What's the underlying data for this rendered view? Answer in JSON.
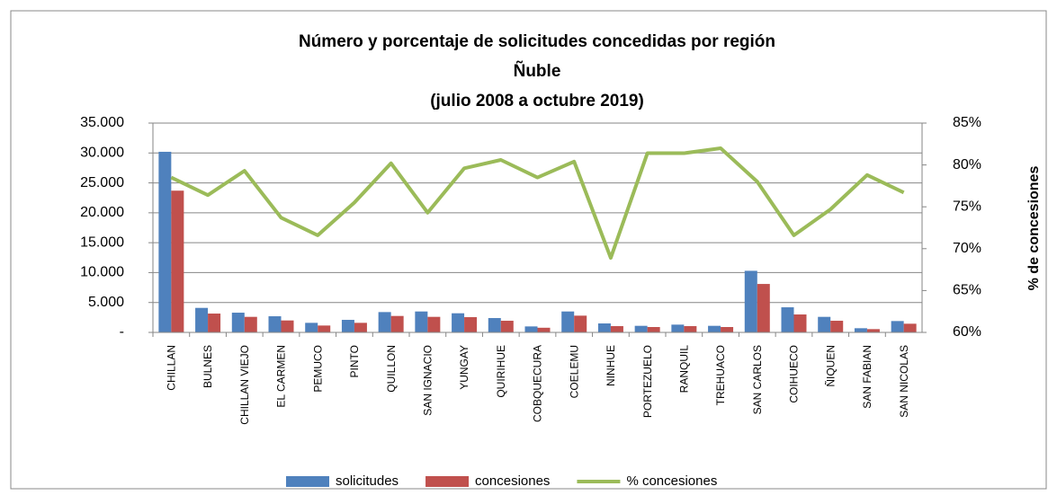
{
  "chart_data": {
    "type": "bar-line",
    "title": "Número y porcentaje de solicitudes concedidas por región",
    "subtitle": "Ñuble",
    "subtitle2": "(julio 2008 a octubre 2019)",
    "y2label": "% de concesiones",
    "categories": [
      "CHILLAN",
      "BULNES",
      "CHILLAN VIEJO",
      "EL CARMEN",
      "PEMUCO",
      "PINTO",
      "QUILLON",
      "SAN IGNACIO",
      "YUNGAY",
      "QUIRIHUE",
      "COBQUECURA",
      "COELEMU",
      "NINHUE",
      "PORTEZUELO",
      "RANQUIL",
      "TREHUACO",
      "SAN CARLOS",
      "COIHUECO",
      "ÑIQUEN",
      "SAN FABIAN",
      "SAN NICOLAS"
    ],
    "series": [
      {
        "name": "solicitudes",
        "color": "#4f81bd",
        "values": [
          30200,
          4100,
          3300,
          2700,
          1600,
          2100,
          3400,
          3500,
          3200,
          2400,
          1000,
          3500,
          1500,
          1100,
          1300,
          1100,
          10300,
          4200,
          2600,
          700,
          1900
        ]
      },
      {
        "name": "concesiones",
        "color": "#c0504d",
        "values": [
          23700,
          3150,
          2600,
          2000,
          1150,
          1600,
          2750,
          2600,
          2550,
          1950,
          780,
          2800,
          1050,
          900,
          1050,
          900,
          8100,
          3000,
          1950,
          550,
          1450
        ]
      },
      {
        "name": "% concesiones",
        "color": "#9bbb59",
        "axis": "y2",
        "values": [
          78.5,
          76.4,
          79.3,
          73.7,
          71.6,
          75.5,
          80.2,
          74.3,
          79.6,
          80.6,
          78.5,
          80.4,
          68.9,
          81.4,
          81.4,
          82.0,
          78.0,
          71.6,
          74.7,
          78.8,
          76.7
        ]
      }
    ],
    "ylim": [
      0,
      35000
    ],
    "yticks": [
      {
        "value": 0,
        "label": "-"
      },
      {
        "value": 5000,
        "label": "5.000"
      },
      {
        "value": 10000,
        "label": "10.000"
      },
      {
        "value": 15000,
        "label": "15.000"
      },
      {
        "value": 20000,
        "label": "20.000"
      },
      {
        "value": 25000,
        "label": "25.000"
      },
      {
        "value": 30000,
        "label": "30.000"
      },
      {
        "value": 35000,
        "label": "35.000"
      }
    ],
    "y2lim": [
      60,
      85
    ],
    "y2ticks": [
      {
        "value": 60,
        "label": "60%"
      },
      {
        "value": 65,
        "label": "65%"
      },
      {
        "value": 70,
        "label": "70%"
      },
      {
        "value": 75,
        "label": "75%"
      },
      {
        "value": 80,
        "label": "80%"
      },
      {
        "value": 85,
        "label": "85%"
      }
    ],
    "grid": true
  }
}
